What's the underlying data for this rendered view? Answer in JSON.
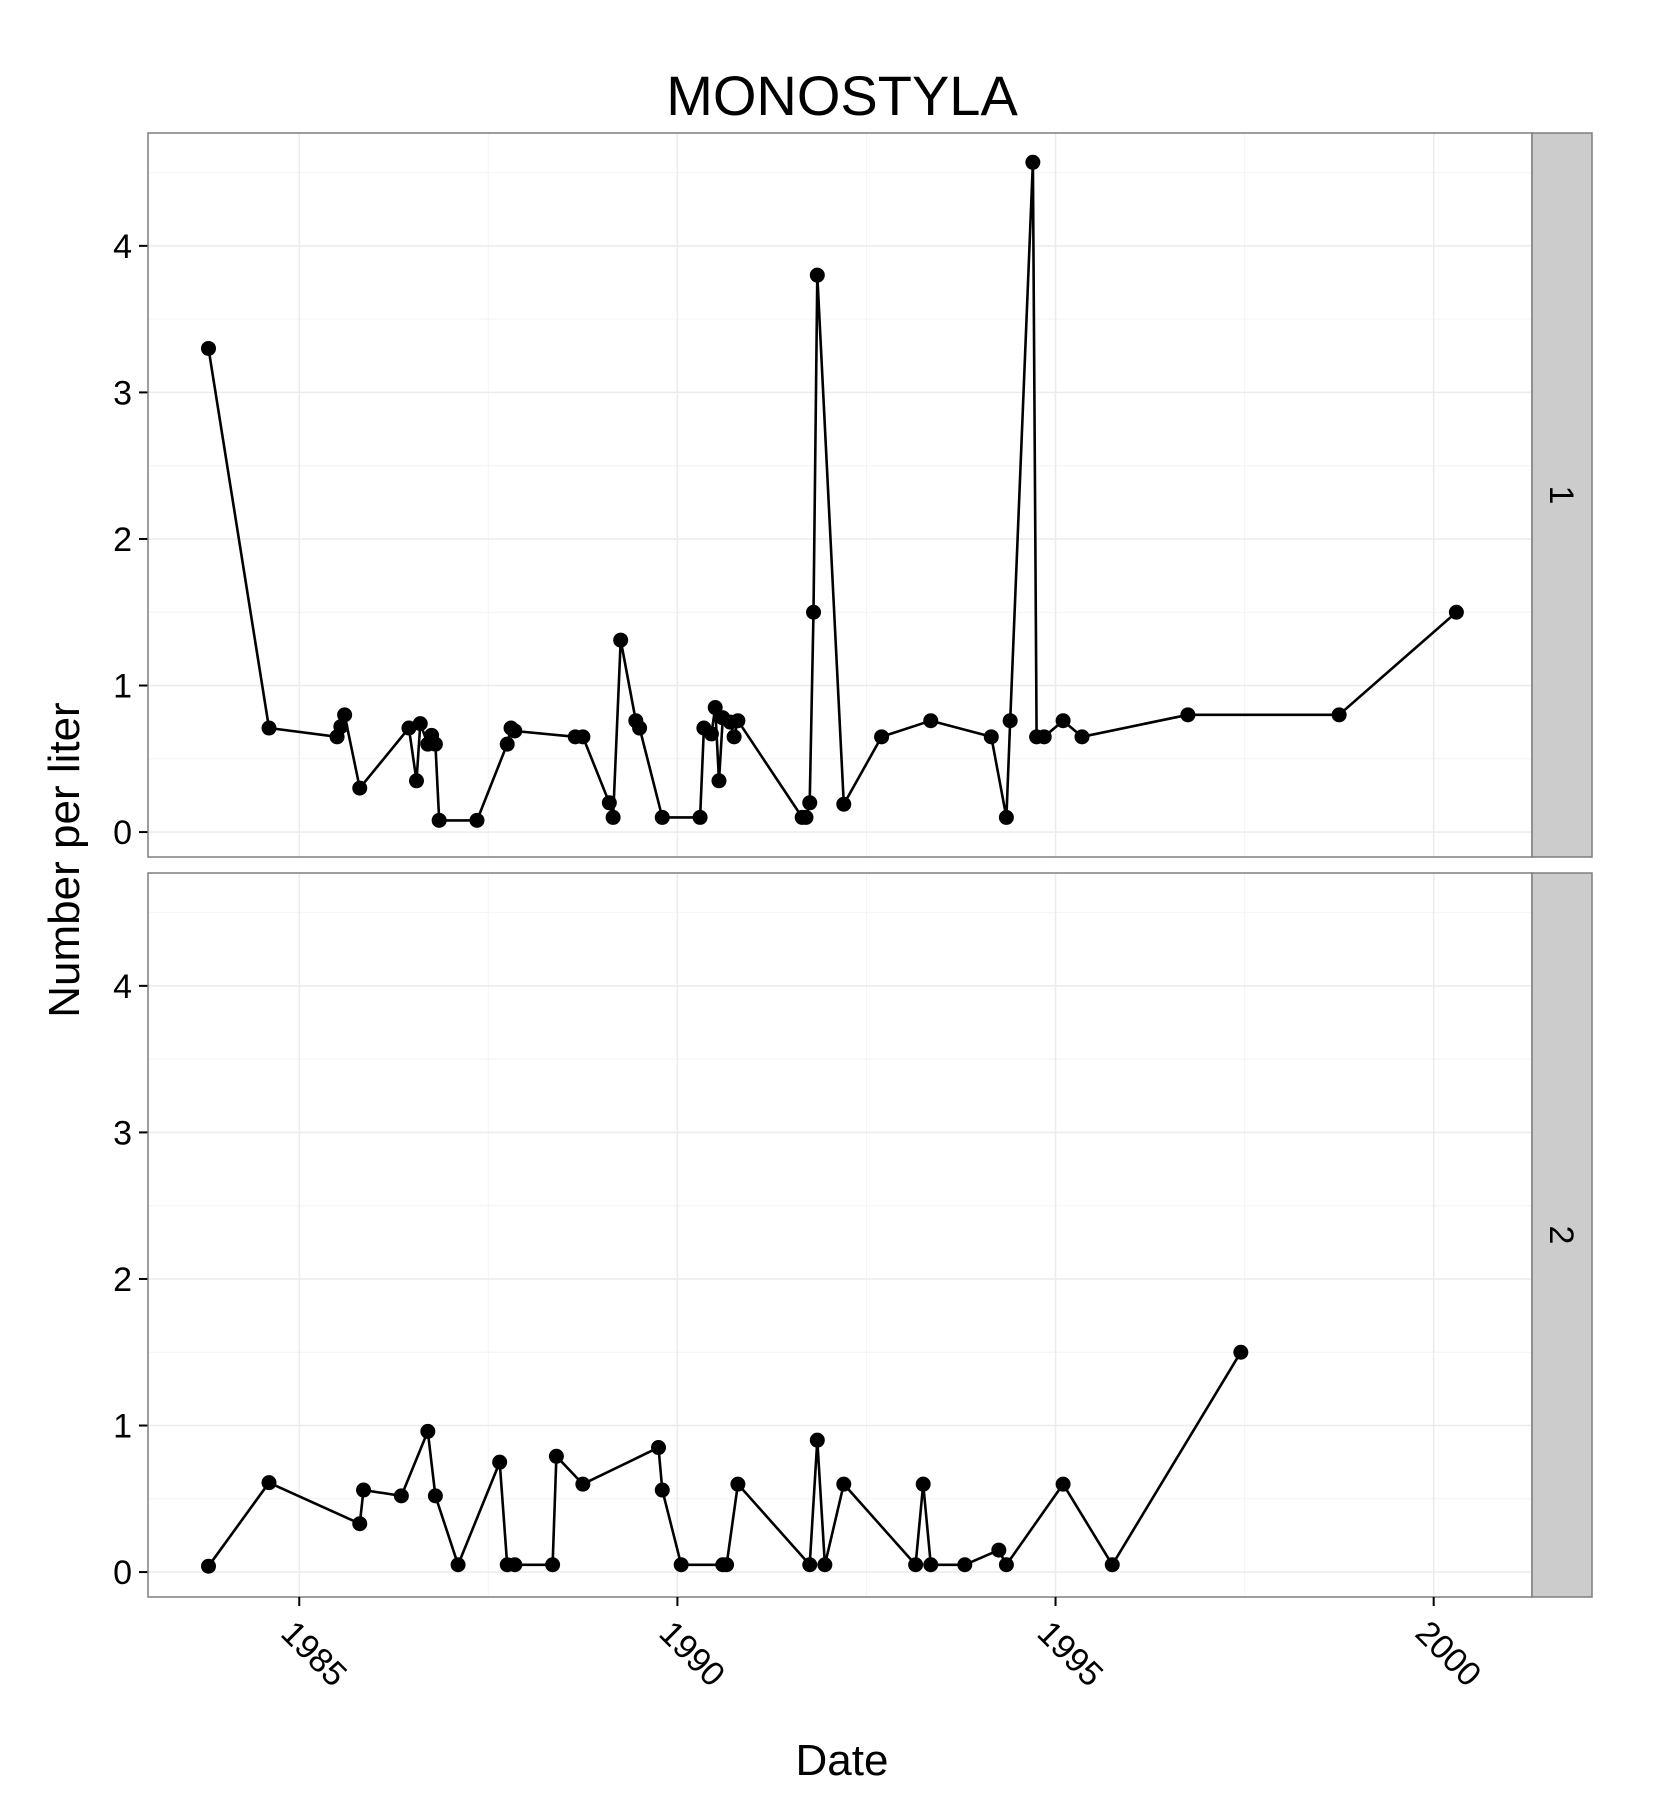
{
  "chart_data": {
    "type": "line",
    "title": "MONOSTYLA",
    "xlabel": "Date",
    "ylabel": "Number per liter",
    "xlim": [
      1983.0,
      2001.3
    ],
    "ylim": [
      -0.17,
      4.77
    ],
    "x_ticks": [
      {
        "value": 1985,
        "label": "1985"
      },
      {
        "value": 1990,
        "label": "1990"
      },
      {
        "value": 1995,
        "label": "1995"
      },
      {
        "value": 2000,
        "label": "2000"
      }
    ],
    "y_ticks": [
      {
        "value": 0,
        "label": "0"
      },
      {
        "value": 1,
        "label": "1"
      },
      {
        "value": 2,
        "label": "2"
      },
      {
        "value": 3,
        "label": "3"
      },
      {
        "value": 4,
        "label": "4"
      }
    ],
    "grid": true,
    "colors": {
      "line": "#000000",
      "point": "#000000",
      "strip": "#cccccc",
      "grid": "#ebebeb",
      "border": "#7f7f7f"
    },
    "panels": [
      {
        "strip_label": "1",
        "x": [
          1983.8,
          1984.6,
          1985.5,
          1985.55,
          1985.6,
          1985.8,
          1986.45,
          1986.55,
          1986.6,
          1986.7,
          1986.75,
          1986.8,
          1986.85,
          1987.35,
          1987.75,
          1987.8,
          1987.85,
          1988.65,
          1988.75,
          1989.1,
          1989.15,
          1989.25,
          1989.45,
          1989.5,
          1989.8,
          1990.3,
          1990.35,
          1990.45,
          1990.5,
          1990.55,
          1990.6,
          1990.7,
          1990.75,
          1990.8,
          1991.65,
          1991.7,
          1991.75,
          1991.8,
          1991.85,
          1992.2,
          1992.7,
          1993.35,
          1994.15,
          1994.35,
          1994.4,
          1994.7,
          1994.75,
          1994.85,
          1995.1,
          1995.35,
          1996.75,
          1998.75,
          2000.3
        ],
        "y": [
          3.3,
          0.71,
          0.65,
          0.72,
          0.8,
          0.3,
          0.71,
          0.35,
          0.74,
          0.6,
          0.66,
          0.6,
          0.08,
          0.08,
          0.6,
          0.71,
          0.69,
          0.65,
          0.65,
          0.2,
          0.1,
          1.31,
          0.76,
          0.71,
          0.1,
          0.1,
          0.71,
          0.67,
          0.85,
          0.35,
          0.78,
          0.75,
          0.65,
          0.76,
          0.1,
          0.1,
          0.2,
          1.5,
          3.8,
          0.19,
          0.65,
          0.76,
          0.65,
          0.1,
          0.76,
          4.57,
          0.65,
          0.65,
          0.76,
          0.65,
          0.8,
          0.8,
          1.5
        ]
      },
      {
        "strip_label": "2",
        "x": [
          1983.8,
          1984.6,
          1985.8,
          1985.85,
          1986.35,
          1986.7,
          1986.8,
          1987.1,
          1987.65,
          1987.75,
          1987.85,
          1988.35,
          1988.4,
          1988.75,
          1989.75,
          1989.8,
          1990.05,
          1990.6,
          1990.65,
          1990.8,
          1991.75,
          1991.85,
          1991.95,
          1992.2,
          1993.15,
          1993.25,
          1993.35,
          1993.8,
          1994.25,
          1994.35,
          1995.1,
          1995.75,
          1997.45
        ],
        "y": [
          0.04,
          0.61,
          0.33,
          0.56,
          0.52,
          0.96,
          0.52,
          0.05,
          0.75,
          0.05,
          0.05,
          0.05,
          0.79,
          0.6,
          0.85,
          0.56,
          0.05,
          0.05,
          0.05,
          0.6,
          0.05,
          0.9,
          0.05,
          0.6,
          0.05,
          0.6,
          0.05,
          0.05,
          0.15,
          0.05,
          0.6,
          0.05,
          1.5
        ]
      }
    ]
  }
}
